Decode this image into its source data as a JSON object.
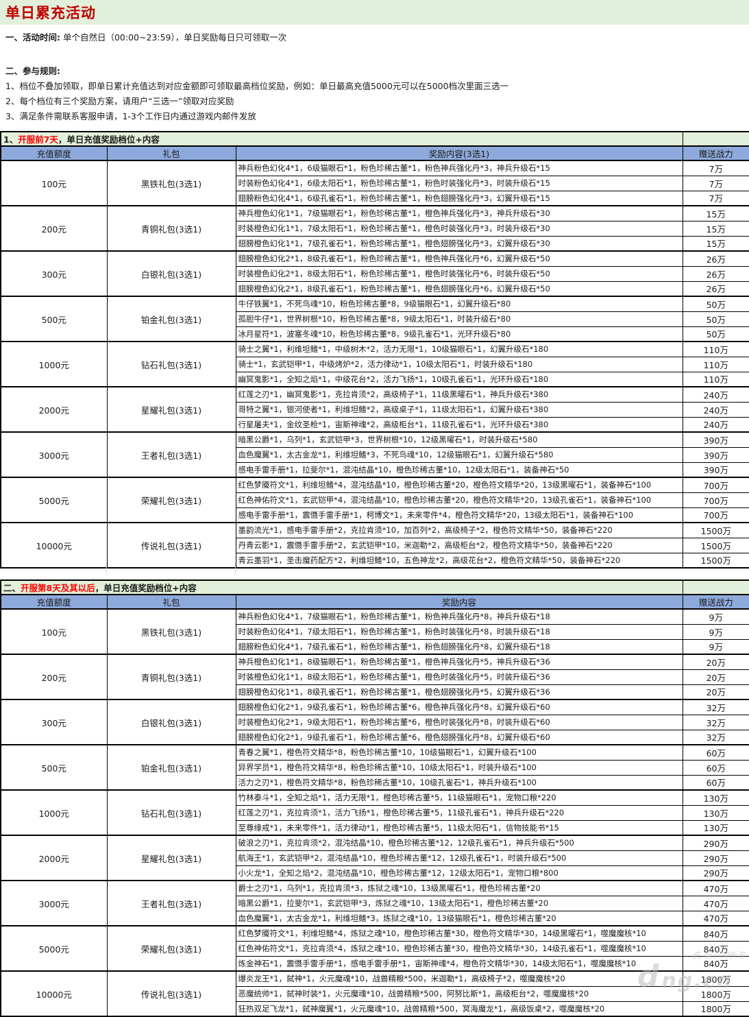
{
  "colors": {
    "title_red": "#c00000",
    "highlight_red": "#ff0000",
    "section_green": "#e2efda",
    "header_blue": "#8ea9db"
  },
  "page": {
    "title": "单日累充活动"
  },
  "intro": {
    "time_head": "一、活动时间:",
    "time_text": " 单个自然日（00:00~23:59），单日奖励每日只可领取一次",
    "rules_head": "二、参与规则:",
    "rules": [
      "1、档位不叠加领取，即单日累计充值达到对应金额即可领取最高档位奖励，例如：单日最高充值5000元可以在5000档次里面三选一",
      "2、每个档位有三个奖励方案，请用户“三选一”领取对应奖励",
      "3、满足条件需联系客服申请，1-3个工作日内通过游戏内邮件发放"
    ]
  },
  "tables": [
    {
      "section": {
        "prefix": "1、",
        "highlight": "开服前7天",
        "suffix": "，单日充值奖励档位+内容"
      },
      "columns": [
        "充值额度",
        "礼包",
        "奖励内容(3选1)",
        "赠送战力"
      ],
      "groups": [
        {
          "amount": "100元",
          "pack": "黑铁礼包(3选1)",
          "rows": [
            {
              "content": "神兵粉色幻化4*1，6级猫眼石*1，粉色珍稀古董*1，粉色神兵强化丹*3，神兵升级石*15",
              "power": "7万"
            },
            {
              "content": "时装粉色幻化4*1，6级太阳石*1，粉色珍稀古董*1，粉色时装强化丹*3，时装升级石*15",
              "power": "7万"
            },
            {
              "content": "翅膀粉色幻化4*1，6级孔雀石*1，粉色珍稀古董*1，粉色翅膀强化丹*3，幻翼升级石*15",
              "power": "7万"
            }
          ]
        },
        {
          "amount": "200元",
          "pack": "青铜礼包(3选1)",
          "rows": [
            {
              "content": "神兵橙色幻化1*1，7级猫眼石*1，粉色珍稀古董*1，橙色神兵强化丹*3，神兵升级石*30",
              "power": "15万"
            },
            {
              "content": "时装橙色幻化1*1，7级太阳石*1，粉色珍稀古董*1，橙色时装强化丹*3，时装升级石*30",
              "power": "15万"
            },
            {
              "content": "翅膀橙色幻化1*1，7级孔雀石*1，粉色珍稀古董*1，橙色翅膀强化丹*3，幻翼升级石*30",
              "power": "15万"
            }
          ]
        },
        {
          "amount": "300元",
          "pack": "白银礼包(3选1)",
          "rows": [
            {
              "content": "翅膀橙色幻化2*1，8级孔雀石*1，粉色珍稀古董*1，橙色神兵强化丹*6，幻翼升级石*50",
              "power": "26万"
            },
            {
              "content": "时装橙色幻化2*1，8级太阳石*1，粉色珍稀古董*1，橙色时装强化丹*6，时装升级石*50",
              "power": "26万"
            },
            {
              "content": "翅膀橙色幻化2*1，8级孔雀石*1，粉色珍稀古董*1，橙色翅膀强化丹*6，幻翼升级石*50",
              "power": "26万"
            }
          ]
        },
        {
          "amount": "500元",
          "pack": "铂金礼包(3选1)",
          "rows": [
            {
              "content": "牛仔铁翼*1，不死鸟魂*10，粉色珍稀古董*8，9级猫眼石*1，幻翼升级石*80",
              "power": "50万"
            },
            {
              "content": "孤胆牛仔*1，世界树根*10，粉色珍稀古董*8，9级太阳石*1，时装升级石*80",
              "power": "50万"
            },
            {
              "content": "冰月星符*1，波塞冬魂*10，粉色珍稀古董*8，9级孔雀石*1，光环升级石*80",
              "power": "50万"
            }
          ]
        },
        {
          "amount": "1000元",
          "pack": "钻石礼包(3选1)",
          "rows": [
            {
              "content": "骑士之翼*1，利维坦鳍*1，中级树木*2，活力无限*1，10级猫眼石*1，幻翼升级石*180",
              "power": "110万"
            },
            {
              "content": "骑士*1，玄武铠甲*1，中级烤炉*2，活力律动*1，10级太阳石*1，时装升级石*180",
              "power": "110万"
            },
            {
              "content": "幽冥鬼影*1，全知之焰*1，中级花台*2，活力飞扬*1，10级孔雀石*1，光环升级石*180",
              "power": "110万"
            }
          ]
        },
        {
          "amount": "2000元",
          "pack": "星耀礼包(3选1)",
          "rows": [
            {
              "content": "红莲之刃*1，幽冥鬼影*1，克拉肯须*2，高级椅子*1，11级黑曜石*1，神兵升级石*380",
              "power": "240万"
            },
            {
              "content": "哥特之翼*1，银河使者*1，利维坦鳍*2，高级桌子*1，11级太阳石*1，幻翼升级石*380",
              "power": "240万"
            },
            {
              "content": "行星屠夫*1，金纹圣枪*1，宙斯神魂*2，高级柜台*1，11级孔雀石*1，光环升级石*380",
              "power": "240万"
            }
          ]
        },
        {
          "amount": "3000元",
          "pack": "王者礼包(3选1)",
          "rows": [
            {
              "content": "暗黑公爵*1，乌列*1，玄武铠甲*3，世界树根*10，12级黑曜石*1，时装升级石*580",
              "power": "390万"
            },
            {
              "content": "血色魔翼*1，太古金龙*1，利维坦鳍*3，不死鸟魂*10，12级猫眼石*1，幻翼升级石*580",
              "power": "390万"
            },
            {
              "content": "感电手雷手册*1，拉斐尔*1，混沌结晶*10，橙色珍稀古董*10，12级太阳石*1，装备神石*50",
              "power": "390万"
            }
          ]
        },
        {
          "amount": "5000元",
          "pack": "荣耀礼包(3选1)",
          "rows": [
            {
              "content": "红色梦魇符文*1，利维坦鳍*4，混沌结晶*10，橙色珍稀古董*20，橙色符文精华*20，13级黑曜石*1，装备神石*100",
              "power": "700万"
            },
            {
              "content": "红色神佑符文*1，玄武铠甲*4，混沌结晶*10，橙色珍稀古董*20，橙色符文精华*20，13级孔雀石*1，装备神石*100",
              "power": "700万"
            },
            {
              "content": "感电手雷手册*1，震慑手雷手册*1，柯博文*1，未来零件*4，橙色符文精华*20，13级太阳石*1，装备神石*100",
              "power": "700万"
            }
          ]
        },
        {
          "amount": "10000元",
          "pack": "传说礼包(3选1)",
          "rows": [
            {
              "content": "墨韵流光*1，感电手雷手册*2，克拉肯须*10，加百列*2，高级椅子*2，橙色符文精华*50，装备神石*220",
              "power": "1500万"
            },
            {
              "content": "丹青云影*1，震慑手雷手册*2，玄武铠甲*10，米迦勒*2，高级柜台*2，橙色符文精华*50，装备神石*220",
              "power": "1500万"
            },
            {
              "content": "青云墨羽*1，圣击魔药配方*2，利维坦鳍*10，五色神龙*2，高级花台*2，橙色符文精华*50，装备神石*220",
              "power": "1500万"
            }
          ]
        }
      ]
    },
    {
      "section": {
        "prefix": "二、",
        "highlight": "开服第8天及其以后",
        "suffix": "，单日充值奖励档位+内容"
      },
      "columns": [
        "充值额度",
        "礼包",
        "奖励内容",
        "赠送战力"
      ],
      "groups": [
        {
          "amount": "100元",
          "pack": "黑铁礼包(3选1)",
          "rows": [
            {
              "content": "神兵粉色幻化4*1，7级猫眼石*1，粉色珍稀古董*1，粉色神兵强化丹*8，神兵升级石*18",
              "power": "9万"
            },
            {
              "content": "时装粉色幻化4*1，7级太阳石*1，粉色珍稀古董*1，粉色时装强化丹*8，时装升级石*18",
              "power": "9万"
            },
            {
              "content": "翅膀粉色幻化4*1，7级孔雀石*1，粉色珍稀古董*1，粉色翅膀强化丹*8，幻翼升级石*18",
              "power": "9万"
            }
          ]
        },
        {
          "amount": "200元",
          "pack": "青铜礼包(3选1)",
          "rows": [
            {
              "content": "神兵橙色幻化1*1，8级猫眼石*1，粉色珍稀古董*1，橙色神兵强化丹*5，神兵升级石*36",
              "power": "20万"
            },
            {
              "content": "时装橙色幻化1*1，8级太阳石*1，粉色珍稀古董*1，橙色时装强化丹*5，时装升级石*36",
              "power": "20万"
            },
            {
              "content": "翅膀橙色幻化1*1，8级孔雀石*1，粉色珍稀古董*1，橙色翅膀强化丹*5，幻翼升级石*36",
              "power": "20万"
            }
          ]
        },
        {
          "amount": "300元",
          "pack": "白银礼包(3选1)",
          "rows": [
            {
              "content": "翅膀橙色幻化2*1，9级孔雀石*1，粉色珍稀古董*6，橙色神兵强化丹*8，幻翼升级石*60",
              "power": "32万"
            },
            {
              "content": "时装橙色幻化2*1，9级太阳石*1，粉色珍稀古董*6，橙色时装强化丹*8，时装升级石*60",
              "power": "32万"
            },
            {
              "content": "翅膀橙色幻化2*1，9级孔雀石*1，粉色珍稀古董*6，橙色翅膀强化丹*8，幻翼升级石*60",
              "power": "32万"
            }
          ]
        },
        {
          "amount": "500元",
          "pack": "铂金礼包(3选1)",
          "rows": [
            {
              "content": "青春之翼*1，橙色符文精华*8，粉色珍稀古董*10，10级猫眼石*1，幻翼升级石*100",
              "power": "60万"
            },
            {
              "content": "异界学员*1，橙色符文精华*8，粉色珍稀古董*10，10级太阳石*1，时装升级石*100",
              "power": "60万"
            },
            {
              "content": "活力之刃*1，橙色符文精华*8，粉色珍稀古董*10，10级孔雀石*1，神兵升级石*100",
              "power": "60万"
            }
          ]
        },
        {
          "amount": "1000元",
          "pack": "钻石礼包(3选1)",
          "rows": [
            {
              "content": "竹林泰斗*1，全知之焰*1，活力无限*1，橙色珍稀古董*5，11级猫眼石*1，宠物口粮*220",
              "power": "130万"
            },
            {
              "content": "红莲之刃*1，克拉肯须*1，活力飞扬*1，橙色珍稀古董*5，11级孔雀石*1，神兵升级石*220",
              "power": "130万"
            },
            {
              "content": "至尊缘戒*1，未来零件*1，活力律动*1，橙色珍稀古董*5，11级太阳石*1，信物技能书*15",
              "power": "130万"
            }
          ]
        },
        {
          "amount": "2000元",
          "pack": "星耀礼包(3选1)",
          "rows": [
            {
              "content": "破浪之刃*1，克拉肯须*2，混沌结晶*10，橙色珍稀古董*12，12级孔雀石*1，神兵升级石*500",
              "power": "290万"
            },
            {
              "content": "航海王*1，玄武铠甲*2，混沌结晶*10，橙色珍稀古董*12，12级孔雀石*1，时装升级石*500",
              "power": "290万"
            },
            {
              "content": "小火龙*1，全知之焰*2，混沌结晶*10，橙色珍稀古董*12，12级太阳石*1，宠物口粮*800",
              "power": "290万"
            }
          ]
        },
        {
          "amount": "3000元",
          "pack": "王者礼包(3选1)",
          "rows": [
            {
              "content": "爵士之刃*1，乌列*1，克拉肯须*3，炼狱之魂*10，13级黑曜石*1，橙色珍稀古董*20",
              "power": "470万"
            },
            {
              "content": "暗黑公爵*1，拉斐尔*1，玄武铠甲*3，炼狱之魂*10，13级太阳石*1，橙色珍稀古董*20",
              "power": "470万"
            },
            {
              "content": "血色魔翼*1，太古金龙*1，利维坦鳍*3，炼狱之魂*10，13级猫眼石*1，橙色珍稀古董*20",
              "power": "470万"
            }
          ]
        },
        {
          "amount": "5000元",
          "pack": "荣耀礼包(3选1)",
          "rows": [
            {
              "content": "红色梦魇符文*1，利维坦鳍*4，炼狱之魂*10，橙色珍稀古董*30，橙色符文精华*30，14级黑曜石*1，噬魔魔核*10",
              "power": "840万"
            },
            {
              "content": "红色神佑符文*1，克拉肯须*4，炼狱之魂*10，橙色珍稀古董*30，橙色符文精华*30，14级孔雀石*1，噬魔魔核*10",
              "power": "840万"
            },
            {
              "content": "炼金神石*1，震慑手雷手册*1，感电手雷手册*1，宙斯神魂*4，橙色符文精华*30，14级太阳石*1，噬魔魔核*10",
              "power": "840万"
            }
          ]
        },
        {
          "amount": "10000元",
          "pack": "传说礼包(3选1)",
          "rows": [
            {
              "content": "爆炎龙王*1，弑神*1，火元魔魂*10，战兽精粮*500，米迦勒*1，高级椅子*2，噬魔魔核*20",
              "power": "1800万"
            },
            {
              "content": "恶魔统帅*1，弑神时装*1，火元魔魂*10，战兽精粮*500，阿努比斯*1，高级柜台*2，噬魔魔核*20",
              "power": "1800万"
            },
            {
              "content": "狂热双足飞龙*1，弑神魔翼*1，火元魔魂*10，战兽精粮*500，冥海魔龙*1，高级饭桌*2，噬魔魔核*20",
              "power": "1800万"
            }
          ]
        }
      ]
    }
  ],
  "watermark": {
    "site_text": "当乐网新游",
    "logo_letter": "d",
    "domain_text": "ng.cn"
  }
}
